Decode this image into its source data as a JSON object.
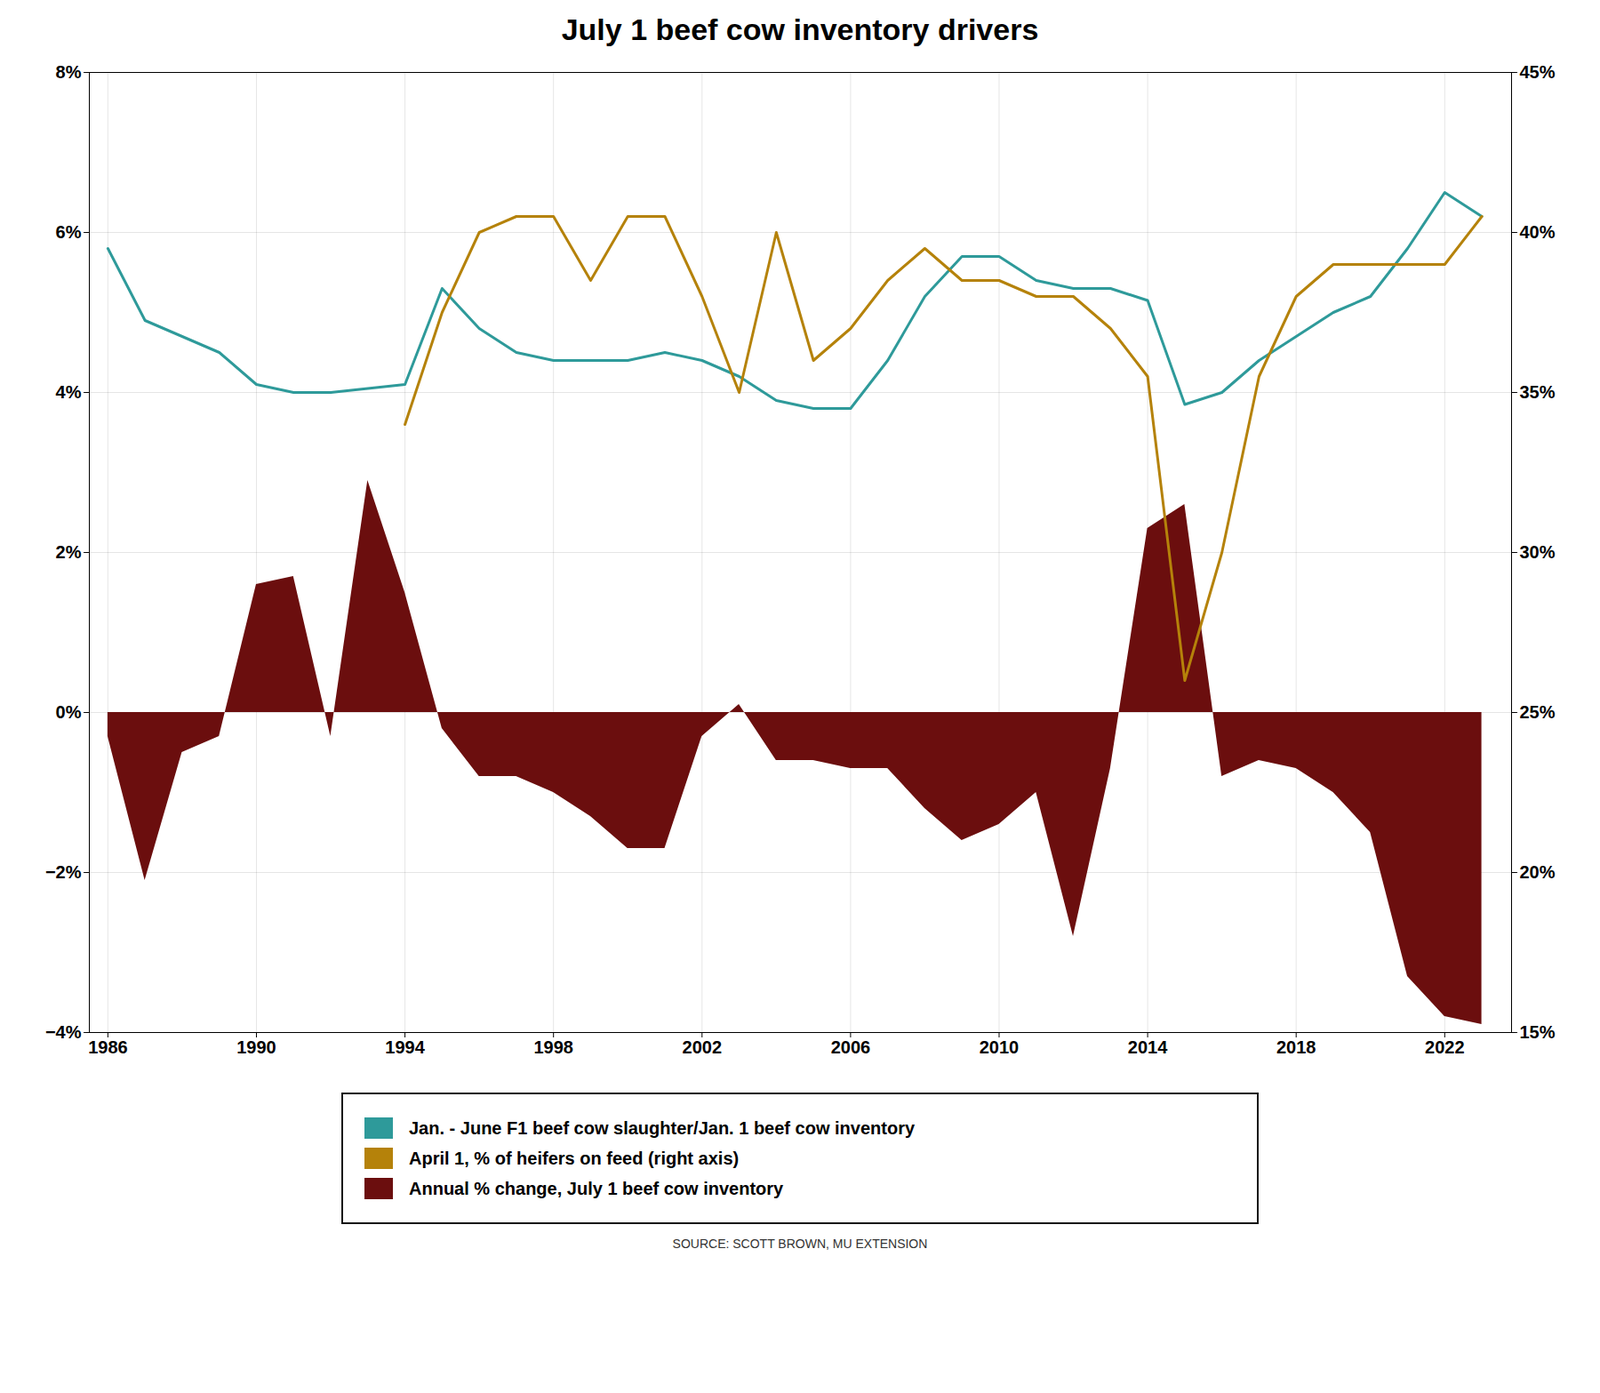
{
  "chart_data": {
    "type": "line",
    "title": "July 1 beef cow inventory drivers",
    "caption": "SOURCE: SCOTT BROWN, MU EXTENSION",
    "x": [
      1986,
      1987,
      1988,
      1989,
      1990,
      1991,
      1992,
      1993,
      1994,
      1995,
      1996,
      1997,
      1998,
      1999,
      2000,
      2001,
      2002,
      2003,
      2004,
      2005,
      2006,
      2007,
      2008,
      2009,
      2010,
      2011,
      2012,
      2013,
      2014,
      2015,
      2016,
      2017,
      2018,
      2019,
      2020,
      2021,
      2022,
      2023
    ],
    "series": [
      {
        "name": "Jan. - June F1 beef cow slaughter/Jan. 1 beef cow inventory",
        "color": "#2e9a9a",
        "type": "line",
        "values": [
          5.8,
          4.9,
          4.7,
          4.5,
          4.1,
          4.0,
          4.0,
          4.05,
          4.1,
          5.3,
          4.8,
          4.5,
          4.4,
          4.4,
          4.4,
          4.5,
          4.4,
          4.2,
          3.9,
          3.8,
          3.8,
          4.4,
          5.2,
          5.7,
          5.7,
          5.4,
          5.3,
          5.3,
          5.15,
          3.85,
          4.0,
          4.4,
          4.7,
          5.0,
          5.2,
          5.8,
          6.5,
          6.2
        ]
      },
      {
        "name": "April 1, % of heifers on feed (right axis)",
        "color": "#b5820a",
        "type": "line",
        "axis": "y2",
        "values": [
          null,
          null,
          null,
          null,
          null,
          null,
          null,
          null,
          34.0,
          37.5,
          40.0,
          40.5,
          40.5,
          38.5,
          40.5,
          40.5,
          38.0,
          35.0,
          40.0,
          36.0,
          37.0,
          38.5,
          39.5,
          38.5,
          38.5,
          38.0,
          38.0,
          37.0,
          35.5,
          26.0,
          30.0,
          35.5,
          38.0,
          39.0,
          39.0,
          39.0,
          39.0,
          40.5
        ]
      },
      {
        "name": "Annual % change, July 1 beef cow inventory",
        "color": "#6b0e0e",
        "type": "area",
        "values": [
          -0.3,
          -2.1,
          -0.5,
          -0.3,
          1.6,
          1.7,
          -0.3,
          2.9,
          1.5,
          -0.2,
          -0.8,
          -0.8,
          -1.0,
          -1.3,
          -1.7,
          -1.7,
          -0.3,
          0.1,
          -0.6,
          -0.6,
          -0.7,
          -0.7,
          -1.2,
          -1.6,
          -1.4,
          -1.0,
          -2.8,
          -0.7,
          2.3,
          2.6,
          -0.8,
          -0.6,
          -0.7,
          -1.0,
          -1.5,
          -3.3,
          -3.8,
          -3.9
        ]
      }
    ],
    "xlim": [
      1985.5,
      2023.8
    ],
    "xticks": [
      1986,
      1990,
      1994,
      1998,
      2002,
      2006,
      2010,
      2014,
      2018,
      2022
    ],
    "ylim": [
      -4,
      8
    ],
    "yticks": [
      {
        "value": -4,
        "label": "−4%"
      },
      {
        "value": -2,
        "label": "−2%"
      },
      {
        "value": 0,
        "label": "0%"
      },
      {
        "value": 2,
        "label": "2%"
      },
      {
        "value": 4,
        "label": "4%"
      },
      {
        "value": 6,
        "label": "6%"
      },
      {
        "value": 8,
        "label": "8%"
      }
    ],
    "y2lim": [
      15,
      45
    ],
    "y2ticks": [
      {
        "value": 15,
        "label": "15%"
      },
      {
        "value": 20,
        "label": "20%"
      },
      {
        "value": 25,
        "label": "25%"
      },
      {
        "value": 30,
        "label": "30%"
      },
      {
        "value": 35,
        "label": "35%"
      },
      {
        "value": 40,
        "label": "40%"
      },
      {
        "value": 45,
        "label": "45%"
      }
    ],
    "grid": true,
    "legend": "bottom"
  }
}
